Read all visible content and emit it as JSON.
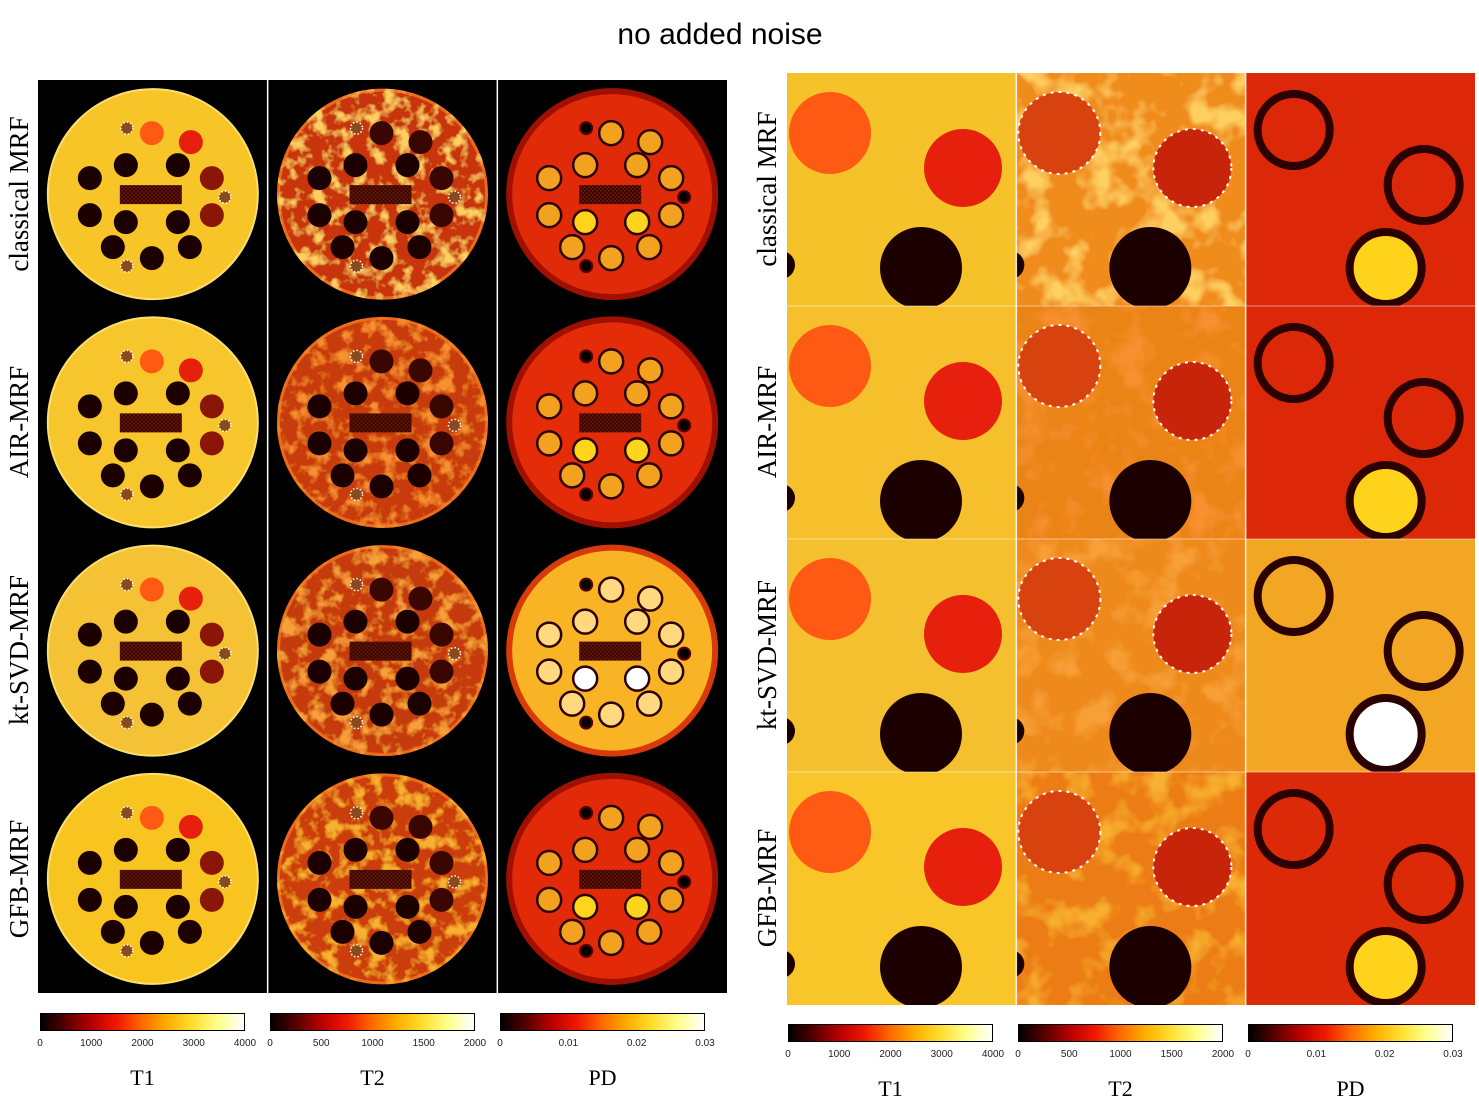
{
  "title": "no added noise",
  "methods": [
    {
      "name": "classical MRF",
      "t1_disk": "#f7c528",
      "t2_disk": "#c8360c",
      "t2_texture": "#ffd060",
      "pd_disk": "#e02a08",
      "pd_rim": "#a01000",
      "pd_fill": "#f2a21e",
      "pd_fill_inner": "#ffd41c",
      "crop_t1_bg": "#f6c22a",
      "crop_t2_bg": "#f08c1c",
      "crop_pd_bg": "#dc2808",
      "crop_pd_fill": "#ffd21c"
    },
    {
      "name": "AIR-MRF",
      "t1_disk": "#f7c62c",
      "t2_disk": "#c83a10",
      "t2_texture": "#f89030",
      "pd_disk": "#e42c08",
      "pd_rim": "#a01000",
      "pd_fill": "#f2a21e",
      "pd_fill_inner": "#ffd41c",
      "crop_t1_bg": "#f5c02c",
      "crop_t2_bg": "#ea8418",
      "crop_pd_bg": "#dc2808",
      "crop_pd_fill": "#ffd21c"
    },
    {
      "name": "kt-SVD-MRF",
      "t1_disk": "#f4c234",
      "t2_disk": "#c63a10",
      "t2_texture": "#f8a038",
      "pd_disk": "#f8b424",
      "pd_rim": "#d83a08",
      "pd_fill": "#ffd880",
      "pd_fill_inner": "#ffffff",
      "crop_t1_bg": "#f4c030",
      "crop_t2_bg": "#ee8a1a",
      "crop_pd_bg": "#f2a624",
      "crop_pd_fill": "#ffffff"
    },
    {
      "name": "GFB-MRF",
      "t1_disk": "#f7c420",
      "t2_disk": "#cc3c0c",
      "t2_texture": "#f8b030",
      "pd_disk": "#e22a08",
      "pd_rim": "#a01000",
      "pd_fill": "#f2a21e",
      "pd_fill_inner": "#ffd41c",
      "crop_t1_bg": "#f8c628",
      "crop_t2_bg": "#ec7c14",
      "crop_pd_bg": "#dc2a08",
      "crop_pd_fill": "#ffd21c"
    }
  ],
  "maps": [
    {
      "label": "T1",
      "ticks": [
        "0",
        "1000",
        "2000",
        "3000",
        "4000"
      ]
    },
    {
      "label": "T2",
      "ticks": [
        "0",
        "500",
        "1000",
        "1500",
        "2000"
      ]
    },
    {
      "label": "PD",
      "ticks": [
        "0",
        "0.01",
        "0.02",
        "0.03"
      ]
    }
  ],
  "palette": {
    "image_background": "#000000",
    "vial_dark": "#1c0000",
    "vial_t1_orange": "#ff5a14",
    "vial_t1_red": "#e6200c",
    "vial_t1_deep": "#8a1608",
    "vial_t2": "#3a0602",
    "crop_t2_vial_a": "#d8420e",
    "crop_t2_vial_b": "#c8240a",
    "pd_ring": "#2a0000",
    "separator": "#ffffff",
    "colormap": [
      "#000000",
      "#580000",
      "#b80000",
      "#f01800",
      "#ff6a00",
      "#ffb000",
      "#ffe030",
      "#ffff90",
      "#ffffff"
    ]
  }
}
